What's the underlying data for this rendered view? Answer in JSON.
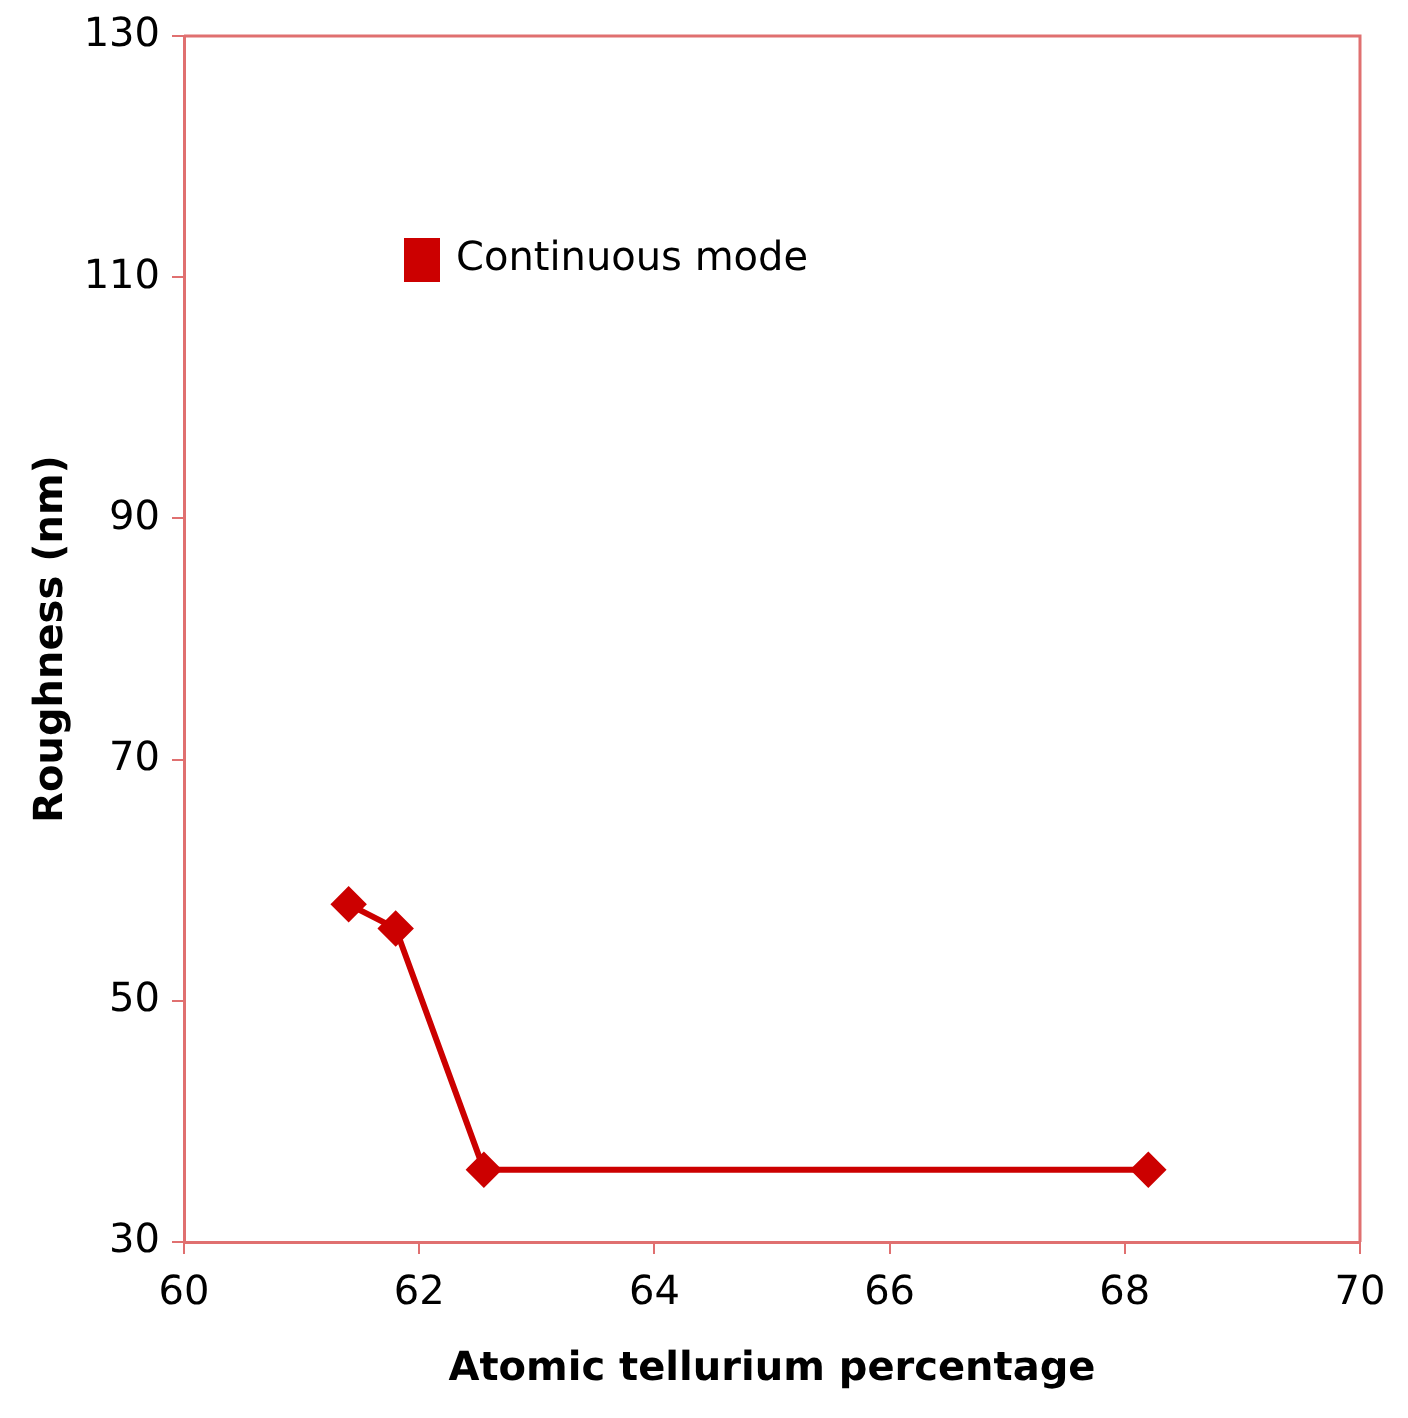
{
  "chart_data": {
    "type": "line",
    "xlabel": "Atomic tellurium percentage",
    "ylabel": "Roughness (nm)",
    "x": [
      61.4,
      61.8,
      62.55,
      68.2
    ],
    "series": [
      {
        "name": "Continuous mode",
        "color": "#cc0000",
        "values": [
          58,
          56,
          36,
          36
        ]
      }
    ],
    "xlim": [
      60,
      70
    ],
    "xticks": [
      60,
      62,
      64,
      66,
      68,
      70
    ],
    "ylim": [
      30,
      130
    ],
    "yticks": [
      30,
      50,
      70,
      90,
      110,
      130
    ],
    "grid": false,
    "legend": "top left",
    "marker": "diamond",
    "line_style": "solid"
  }
}
